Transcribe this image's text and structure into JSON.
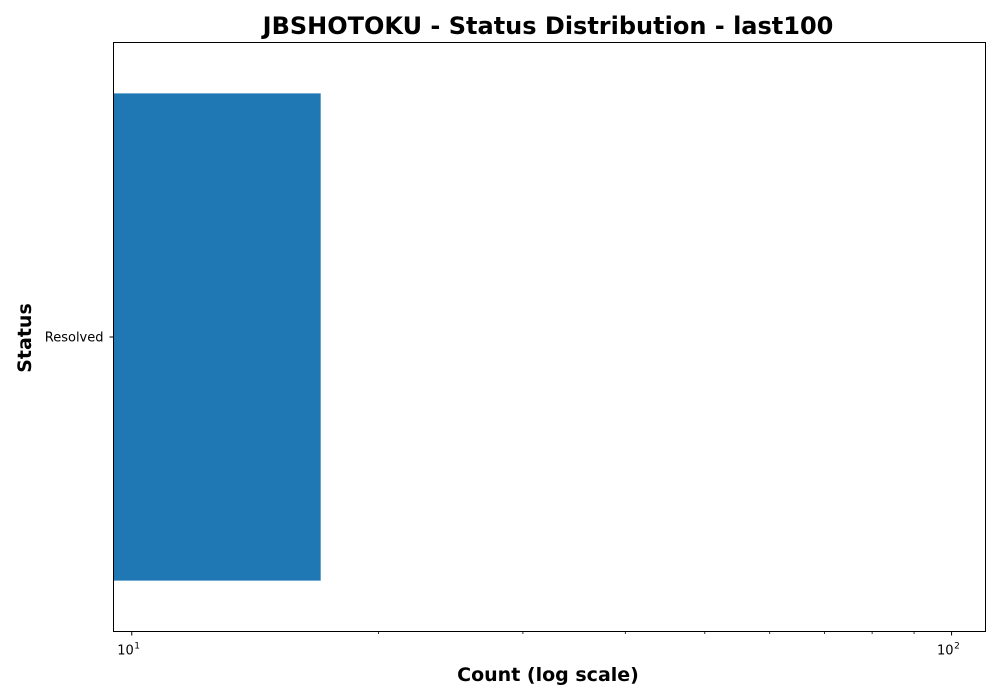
{
  "chart_data": {
    "type": "bar",
    "orientation": "horizontal",
    "title": "JBSHOTOKU - Status Distribution - last100",
    "xlabel": "Count (log scale)",
    "ylabel": "Status",
    "x_scale": "log",
    "xlim": [
      9.5,
      110
    ],
    "x_ticks": [
      {
        "value": 10,
        "base": "10",
        "exponent": "1"
      },
      {
        "value": 100,
        "base": "10",
        "exponent": "2"
      }
    ],
    "categories": [
      "Resolved"
    ],
    "values": [
      17
    ],
    "bar_color": "#1f77b4",
    "grid": false,
    "legend": "none"
  }
}
